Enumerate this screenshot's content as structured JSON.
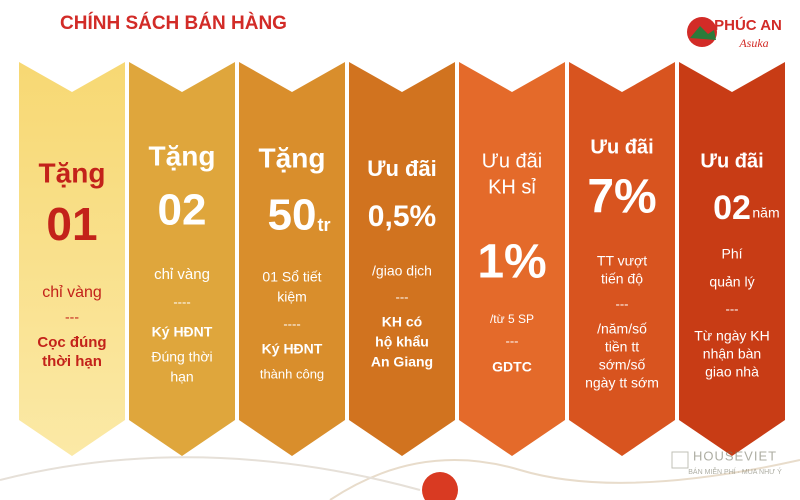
{
  "header": {
    "title": "CHÍNH SÁCH BÁN HÀNG",
    "logo_name": "PHÚC AN",
    "logo_sub": "Asuka"
  },
  "panels": [
    {
      "lines": [
        "Tặng",
        "01",
        "chỉ vàng",
        "---",
        "Cọc đúng",
        "thời hạn"
      ]
    },
    {
      "lines": [
        "Tặng",
        "02",
        "chỉ vàng",
        "----",
        "Ký HĐNT",
        "Đúng thời",
        "hạn"
      ]
    },
    {
      "lines": [
        "Tặng",
        "50",
        "tr",
        "01 Sổ tiết",
        "kiệm",
        "----",
        "Ký HĐNT",
        "thành công"
      ]
    },
    {
      "lines": [
        "Ưu đãi",
        "0,5%",
        "/giao dịch",
        "---",
        "KH có",
        "hộ khẩu",
        "An Giang"
      ]
    },
    {
      "lines": [
        "Ưu đãi",
        "KH sỉ",
        "1%",
        "/từ 5 SP",
        "---",
        "GDTC"
      ]
    },
    {
      "lines": [
        "Ưu đãi",
        "7%",
        "TT vượt",
        "tiến độ",
        "---",
        "/năm/số",
        "tiền tt",
        "sớm/số",
        "ngày tt sớm"
      ]
    },
    {
      "lines": [
        "Ưu đãi",
        "02",
        "năm",
        "Phí",
        "quản lý",
        "---",
        "Từ ngày KH",
        "nhận bàn",
        "giao nhà"
      ]
    }
  ],
  "watermark": {
    "brand": "HOUSEVIET",
    "slogan": "BÁN MIỄN PHÍ · MUA NHƯ Ý"
  }
}
